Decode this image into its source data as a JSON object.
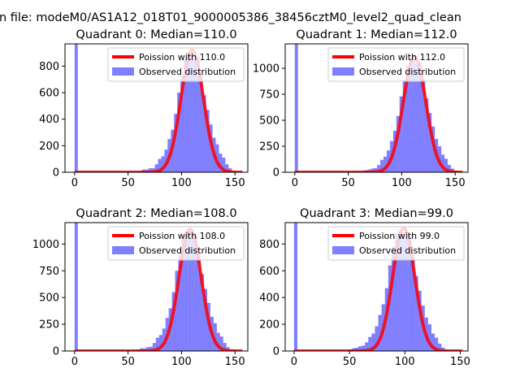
{
  "chart_data": {
    "type": "bar",
    "suptitle": "n file: modeM0/AS1A12_018T01_9000005386_38456cztM0_level2_quad_clean",
    "colors": {
      "hist": "#0000ff",
      "poisson": "#ff0000"
    },
    "bin_width": 3,
    "panels": [
      {
        "title": "Quadrant 0: Median=110.0",
        "legend": [
          "Poission with 110.0",
          "Observed distribution"
        ],
        "mean": 110,
        "poisson_peak": 920,
        "xlim": [
          -9,
          162
        ],
        "ylim": [
          0,
          967
        ],
        "xticks": [
          0,
          50,
          100,
          150
        ],
        "yticks": [
          0,
          200,
          400,
          600,
          800
        ],
        "zero_bin": 2000,
        "bin_start": 60,
        "values": [
          10,
          20,
          20,
          30,
          30,
          60,
          100,
          120,
          170,
          250,
          320,
          440,
          600,
          730,
          850,
          900,
          900,
          850,
          870,
          730,
          580,
          470,
          360,
          260,
          210,
          140,
          110,
          60,
          30,
          10,
          5
        ]
      },
      {
        "title": "Quadrant 1: Median=112.0",
        "legend": [
          "Poission with 112.0",
          "Observed distribution"
        ],
        "mean": 112,
        "poisson_peak": 1110,
        "xlim": [
          -9,
          162
        ],
        "ylim": [
          0,
          1235
        ],
        "xticks": [
          0,
          50,
          100,
          150
        ],
        "yticks": [
          0,
          250,
          500,
          750,
          1000
        ],
        "zero_bin": 2000,
        "bin_start": 62,
        "values": [
          12,
          20,
          25,
          35,
          40,
          70,
          120,
          150,
          210,
          300,
          400,
          540,
          730,
          890,
          1030,
          1100,
          1100,
          1040,
          1060,
          890,
          710,
          570,
          440,
          320,
          250,
          170,
          130,
          70,
          35,
          12,
          6
        ]
      },
      {
        "title": "Quadrant 2: Median=108.0",
        "legend": [
          "Poission with 108.0",
          "Observed distribution"
        ],
        "mean": 108,
        "poisson_peak": 1140,
        "xlim": [
          -9,
          162
        ],
        "ylim": [
          0,
          1200
        ],
        "xticks": [
          0,
          50,
          100,
          150
        ],
        "yticks": [
          0,
          250,
          500,
          750,
          1000
        ],
        "zero_bin": 2000,
        "bin_start": 58,
        "values": [
          12,
          25,
          25,
          35,
          40,
          75,
          125,
          150,
          210,
          310,
          400,
          550,
          750,
          900,
          1050,
          1120,
          1120,
          1050,
          1080,
          900,
          720,
          580,
          450,
          320,
          260,
          170,
          135,
          75,
          35,
          12,
          6
        ]
      },
      {
        "title": "Quadrant 3: Median=99.0",
        "legend": [
          "Poission with 99.0",
          "Observed distribution"
        ],
        "mean": 99,
        "poisson_peak": 920,
        "xlim": [
          -8,
          157
        ],
        "ylim": [
          0,
          960
        ],
        "xticks": [
          0,
          50,
          100,
          150
        ],
        "yticks": [
          0,
          200,
          400,
          600,
          800
        ],
        "zero_bin": 2000,
        "bin_start": 49,
        "values": [
          10,
          20,
          25,
          35,
          40,
          65,
          105,
          130,
          185,
          270,
          350,
          470,
          640,
          780,
          880,
          900,
          890,
          840,
          860,
          700,
          560,
          450,
          340,
          250,
          200,
          130,
          100,
          55,
          25,
          10,
          5
        ]
      }
    ]
  }
}
